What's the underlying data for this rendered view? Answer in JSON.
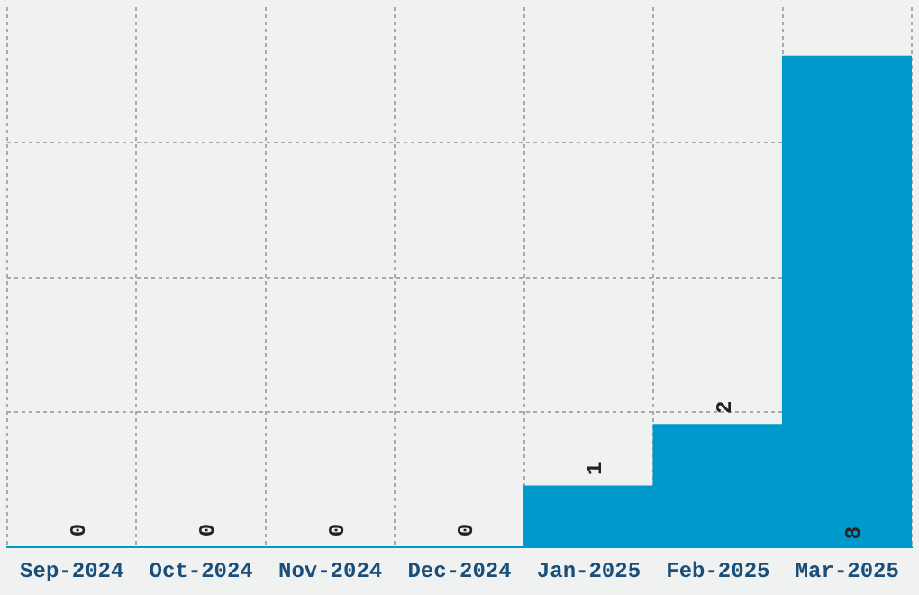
{
  "chart_data": {
    "type": "bar",
    "categories": [
      "Sep-2024",
      "Oct-2024",
      "Nov-2024",
      "Dec-2024",
      "Jan-2025",
      "Feb-2025",
      "Mar-2025"
    ],
    "values": [
      0,
      0,
      0,
      0,
      1,
      2,
      8
    ],
    "color": "#0099cc",
    "data_labels": true,
    "ylim": [
      0,
      8.8
    ],
    "yticks": [
      {
        "value": 0,
        "label": null
      },
      {
        "value": 2.2,
        "label": null
      },
      {
        "value": 4.4,
        "label": null
      },
      {
        "value": 6.6,
        "label": null
      }
    ],
    "tick_labels": "x",
    "grid": true,
    "legend": false
  }
}
